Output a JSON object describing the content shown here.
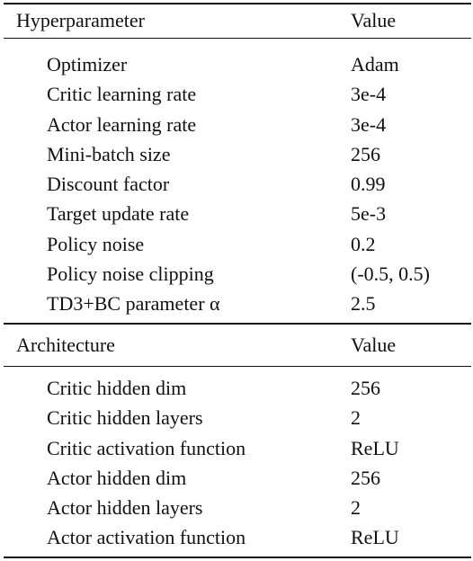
{
  "sections": [
    {
      "header": [
        "Hyperparameter",
        "Value"
      ],
      "rows": [
        [
          "Optimizer",
          "Adam"
        ],
        [
          "Critic learning rate",
          "3e-4"
        ],
        [
          "Actor learning rate",
          "3e-4"
        ],
        [
          "Mini-batch size",
          "256"
        ],
        [
          "Discount factor",
          "0.99"
        ],
        [
          "Target update rate",
          "5e-3"
        ],
        [
          "Policy noise",
          "0.2"
        ],
        [
          "Policy noise clipping",
          "(-0.5, 0.5)"
        ],
        [
          "TD3+BC parameter α",
          "2.5"
        ]
      ]
    },
    {
      "header": [
        "Architecture",
        "Value"
      ],
      "rows": [
        [
          "Critic hidden dim",
          "256"
        ],
        [
          "Critic hidden layers",
          "2"
        ],
        [
          "Critic activation function",
          "ReLU"
        ],
        [
          "Actor hidden dim",
          "256"
        ],
        [
          "Actor hidden layers",
          "2"
        ],
        [
          "Actor activation function",
          "ReLU"
        ]
      ]
    }
  ]
}
